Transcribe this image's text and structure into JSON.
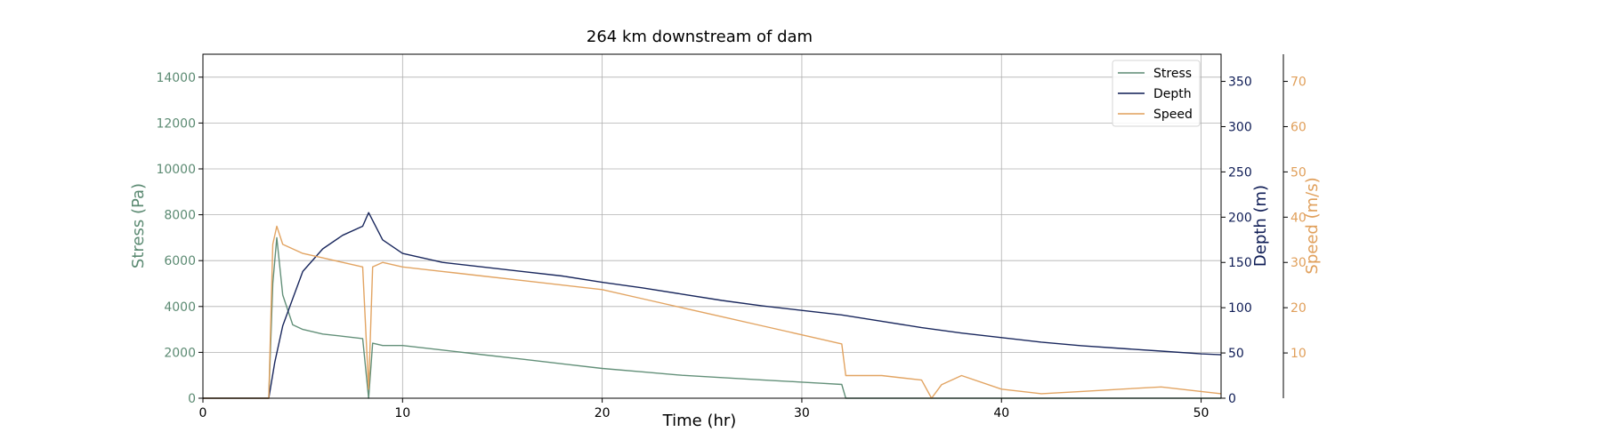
{
  "chart_data": {
    "type": "line",
    "title": "264 km downstream of dam",
    "xlabel": "Time (hr)",
    "xlim": [
      0,
      51
    ],
    "xticks": [
      0,
      10,
      20,
      30,
      40,
      50
    ],
    "grid": true,
    "legend_position": "top-right",
    "axes": {
      "stress": {
        "label": "Stress (Pa)",
        "side": "left",
        "ylim": [
          0,
          15000
        ],
        "ticks": [
          0,
          2000,
          4000,
          6000,
          8000,
          10000,
          12000,
          14000
        ],
        "color": "#5b8a72"
      },
      "depth": {
        "label": "Depth (m)",
        "side": "right",
        "ylim": [
          0,
          380
        ],
        "ticks": [
          0,
          50,
          100,
          150,
          200,
          250,
          300,
          350
        ],
        "color": "#0d1b54"
      },
      "speed": {
        "label": "Speed (m/s)",
        "side": "right-outer",
        "ylim": [
          0,
          76
        ],
        "ticks": [
          10,
          20,
          30,
          40,
          50,
          60,
          70
        ],
        "color": "#e09f5a"
      }
    },
    "series": [
      {
        "name": "Stress",
        "axis": "stress",
        "color": "#5b8a72",
        "x": [
          0,
          3.3,
          3.5,
          3.7,
          4,
          4.5,
          5,
          6,
          7,
          8,
          8.3,
          8.5,
          9,
          10,
          12,
          14,
          16,
          18,
          20,
          22,
          24,
          26,
          28,
          30,
          31,
          32,
          32.2,
          35,
          40,
          45,
          51
        ],
        "y": [
          0,
          0,
          5000,
          7000,
          4500,
          3200,
          3000,
          2800,
          2700,
          2600,
          0,
          2400,
          2300,
          2300,
          2100,
          1900,
          1700,
          1500,
          1300,
          1150,
          1000,
          900,
          800,
          700,
          650,
          600,
          0,
          0,
          0,
          0,
          0
        ]
      },
      {
        "name": "Depth",
        "axis": "depth",
        "color": "#0d1b54",
        "x": [
          0,
          3.3,
          3.6,
          4,
          4.5,
          5,
          6,
          7,
          8,
          8.3,
          9,
          10,
          12,
          14,
          16,
          18,
          20,
          22,
          24,
          26,
          28,
          30,
          32,
          34,
          36,
          38,
          40,
          42,
          44,
          46,
          48,
          50,
          51
        ],
        "y": [
          0,
          0,
          40,
          80,
          110,
          140,
          165,
          180,
          190,
          205,
          175,
          160,
          150,
          145,
          140,
          135,
          128,
          122,
          115,
          108,
          102,
          97,
          92,
          85,
          78,
          72,
          67,
          62,
          58,
          55,
          52,
          49,
          48
        ]
      },
      {
        "name": "Speed",
        "axis": "speed",
        "color": "#e09f5a",
        "x": [
          0,
          3.3,
          3.5,
          3.7,
          4,
          5,
          6,
          7,
          8,
          8.3,
          8.5,
          9,
          10,
          12,
          14,
          16,
          18,
          20,
          22,
          24,
          26,
          28,
          30,
          31,
          32,
          32.2,
          34,
          36,
          36.5,
          37,
          38,
          40,
          42,
          44,
          46,
          48,
          50,
          51
        ],
        "y": [
          0,
          0,
          34,
          38,
          34,
          32,
          31,
          30,
          29,
          2,
          29,
          30,
          29,
          28,
          27,
          26,
          25,
          24,
          22,
          20,
          18,
          16,
          14,
          13,
          12,
          5,
          5,
          4,
          0,
          3,
          5,
          2,
          1,
          1.5,
          2,
          2.5,
          1.5,
          1
        ]
      }
    ]
  }
}
